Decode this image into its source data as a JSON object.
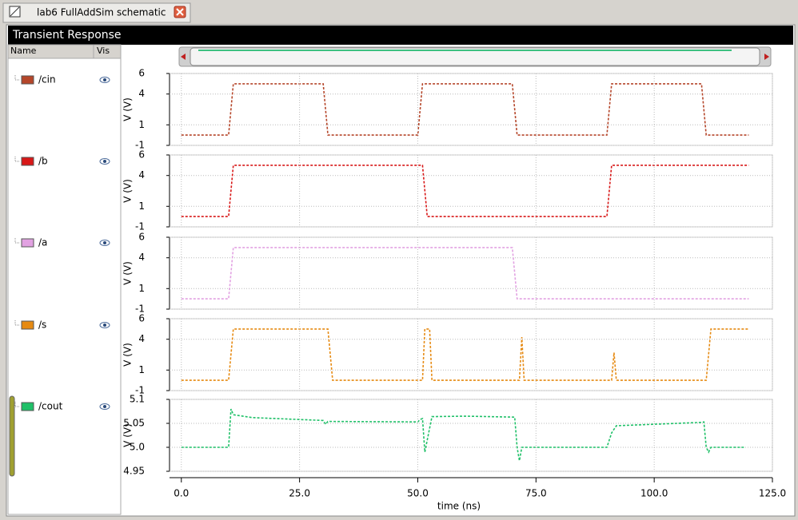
{
  "tab_title": "lab6 FullAddSim schematic",
  "window_title": "Transient Response",
  "columns": [
    "Name",
    "Vis"
  ],
  "chart_data": [
    {
      "type": "line",
      "ylabel": "V (V)",
      "xlim": [
        -2.5,
        125
      ],
      "ylim": [
        -1,
        6
      ],
      "yticks": [
        6,
        4,
        1,
        -1
      ],
      "x": [
        0,
        10,
        11,
        30,
        31,
        50,
        51,
        70,
        71,
        90,
        91,
        110,
        111,
        120
      ],
      "series": [
        {
          "name": "/cin",
          "color": "#b5462a",
          "values": [
            0,
            0,
            5,
            5,
            0,
            0,
            5,
            5,
            0,
            0,
            5,
            5,
            0,
            0
          ]
        }
      ]
    },
    {
      "type": "line",
      "ylabel": "V (V)",
      "xlim": [
        -2.5,
        125
      ],
      "ylim": [
        -1,
        6
      ],
      "yticks": [
        6,
        4,
        1,
        -1
      ],
      "x": [
        0,
        10,
        11,
        51,
        52,
        90,
        91,
        120
      ],
      "series": [
        {
          "name": "/b",
          "color": "#d81818",
          "values": [
            0,
            0,
            5,
            5,
            0,
            0,
            5,
            5
          ]
        }
      ]
    },
    {
      "type": "line",
      "ylabel": "V (V)",
      "xlim": [
        -2.5,
        125
      ],
      "ylim": [
        -1,
        6
      ],
      "yticks": [
        6,
        4,
        1,
        -1
      ],
      "x": [
        0,
        10,
        11,
        70,
        71,
        120
      ],
      "series": [
        {
          "name": "/a",
          "color": "#e2a2e2",
          "values": [
            0,
            0,
            5,
            5,
            0,
            0
          ]
        }
      ]
    },
    {
      "type": "line",
      "ylabel": "V (V)",
      "xlim": [
        -2.5,
        125
      ],
      "ylim": [
        -1,
        6
      ],
      "yticks": [
        6,
        4,
        1,
        -1
      ],
      "x": [
        0,
        10,
        11,
        31,
        32,
        51,
        51.5,
        52.5,
        53,
        71.5,
        72,
        72.5,
        91,
        91.5,
        92,
        111,
        112,
        120
      ],
      "series": [
        {
          "name": "/s",
          "color": "#e68a12",
          "values": [
            0,
            0,
            5,
            5,
            0,
            0,
            5,
            5,
            0,
            0,
            4.2,
            0,
            0,
            2.7,
            0,
            0,
            5,
            5
          ]
        }
      ]
    },
    {
      "type": "line",
      "ylabel": "V (V)",
      "xlabel": "time (ns)",
      "xlim": [
        -2.5,
        125
      ],
      "ylim": [
        4.95,
        5.1
      ],
      "yticks": [
        5.1,
        5.05,
        {
          "value": 5.0,
          "label": "5.0"
        },
        4.95
      ],
      "xticks": [
        {
          "value": 0,
          "label": "0.0"
        },
        {
          "value": 25,
          "label": "25.0"
        },
        {
          "value": 50,
          "label": "50.0"
        },
        {
          "value": 75,
          "label": "75.0"
        },
        {
          "value": 100,
          "label": "100.0"
        },
        {
          "value": 125,
          "label": "125.0"
        }
      ],
      "x": [
        0,
        10,
        10.5,
        11,
        15,
        30,
        30.5,
        31,
        50,
        50.5,
        51,
        51.5,
        53,
        60,
        70.5,
        71,
        71.5,
        72,
        90,
        91,
        92,
        110,
        110.5,
        111,
        111.5,
        112,
        119
      ],
      "series": [
        {
          "name": "/cout",
          "color": "#1fc068",
          "values": [
            5.0,
            5.0,
            5.08,
            5.068,
            5.062,
            5.056,
            5.048,
            5.054,
            5.053,
            5.058,
            5.06,
            4.99,
            5.064,
            5.065,
            5.063,
            5.0,
            4.972,
            5.0,
            5.0,
            5.03,
            5.045,
            5.052,
            5.053,
            5.0,
            4.99,
            5.0,
            5.0
          ]
        }
      ]
    }
  ]
}
